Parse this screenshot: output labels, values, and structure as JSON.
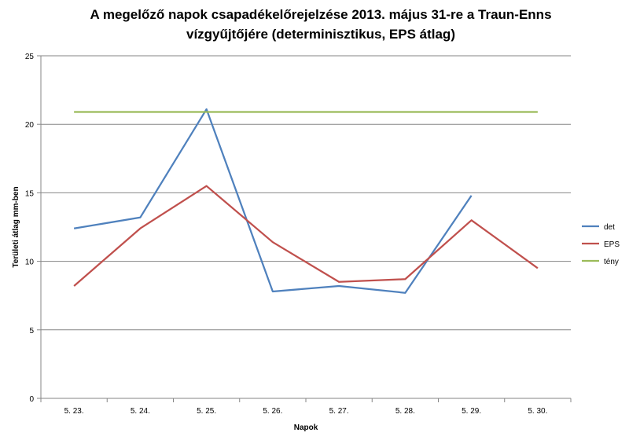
{
  "chart_data": {
    "type": "line",
    "title": [
      "A megelőző napok csapadékelőrejelzése 2013. május 31-re a Traun-Enns",
      "vízgyűjtőjére (determinisztikus, EPS átlag)"
    ],
    "xlabel": "Napok",
    "ylabel": "Területi átlag mm-ben",
    "categories": [
      "5. 23.",
      "5. 24.",
      "5. 25.",
      "5. 26.",
      "5. 27.",
      "5. 28.",
      "5. 29.",
      "5. 30."
    ],
    "ylim": [
      0,
      25
    ],
    "yticks": [
      "0",
      "5",
      "10",
      "15",
      "20",
      "25"
    ],
    "grid": true,
    "legend_position": "right",
    "series": [
      {
        "name": "det",
        "color": "#4f81bd",
        "values": [
          12.4,
          13.2,
          21.1,
          7.8,
          8.2,
          7.7,
          14.8,
          null
        ]
      },
      {
        "name": "EPS",
        "color": "#c0504d",
        "values": [
          8.2,
          12.4,
          15.5,
          11.4,
          8.5,
          8.7,
          13.0,
          9.5
        ]
      },
      {
        "name": "tény",
        "color": "#9bbb59",
        "values": [
          20.9,
          20.9,
          20.9,
          20.9,
          20.9,
          20.9,
          20.9,
          20.9
        ]
      }
    ]
  }
}
